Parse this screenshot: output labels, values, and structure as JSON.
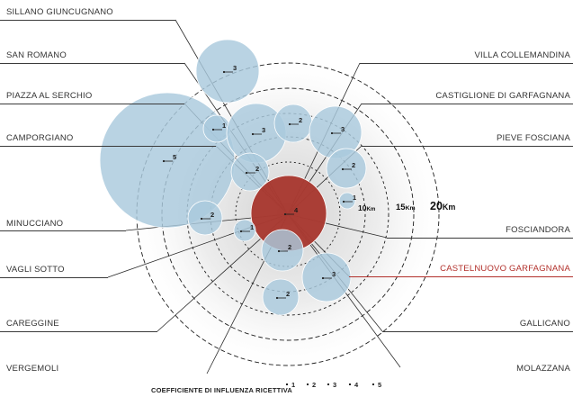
{
  "municipalities_left": [
    {
      "name": "SILLANO GIUNCUGNANO"
    },
    {
      "name": "SAN ROMANO"
    },
    {
      "name": "PIAZZA AL SERCHIO"
    },
    {
      "name": "CAMPORGIANO"
    },
    {
      "name": "MINUCCIANO"
    },
    {
      "name": "VAGLI SOTTO"
    },
    {
      "name": "CAREGGINE"
    },
    {
      "name": "VERGEMOLI"
    }
  ],
  "municipalities_right": [
    {
      "name": "VILLA COLLEMANDINA"
    },
    {
      "name": "CASTIGLIONE DI GARFAGNANA"
    },
    {
      "name": "PIEVE FOSCIANA"
    },
    {
      "name": "FOSCIANDORA"
    },
    {
      "name": "CASTELNUOVO GARFAGNANA",
      "highlight": true
    },
    {
      "name": "GALLICANO"
    },
    {
      "name": "MOLAZZANA"
    }
  ],
  "distance_rings": [
    {
      "label": "10",
      "unit": "Km"
    },
    {
      "label": "15",
      "unit": "Km"
    },
    {
      "label": "20",
      "unit": "Km"
    }
  ],
  "bubbles": [
    {
      "value": "5"
    },
    {
      "value": "3"
    },
    {
      "value": "1"
    },
    {
      "value": "3"
    },
    {
      "value": "2"
    },
    {
      "value": "2"
    },
    {
      "value": "3"
    },
    {
      "value": "2"
    },
    {
      "value": "1"
    },
    {
      "value": "4",
      "center": true
    },
    {
      "value": "2"
    },
    {
      "value": "1"
    },
    {
      "value": "2"
    },
    {
      "value": "3"
    },
    {
      "value": "2"
    }
  ],
  "legend": {
    "title": "COEFFICIENTE DI INFLUENZA RICETTIVA",
    "levels": [
      "1",
      "2",
      "3",
      "4",
      "5"
    ]
  },
  "colors": {
    "bubble_fill": "#a9c9dd",
    "bubble_stroke": "#ffffff",
    "center_fill": "#a83a32",
    "highlight_text": "#b2302b",
    "ring_stroke": "#1e1e1e"
  }
}
